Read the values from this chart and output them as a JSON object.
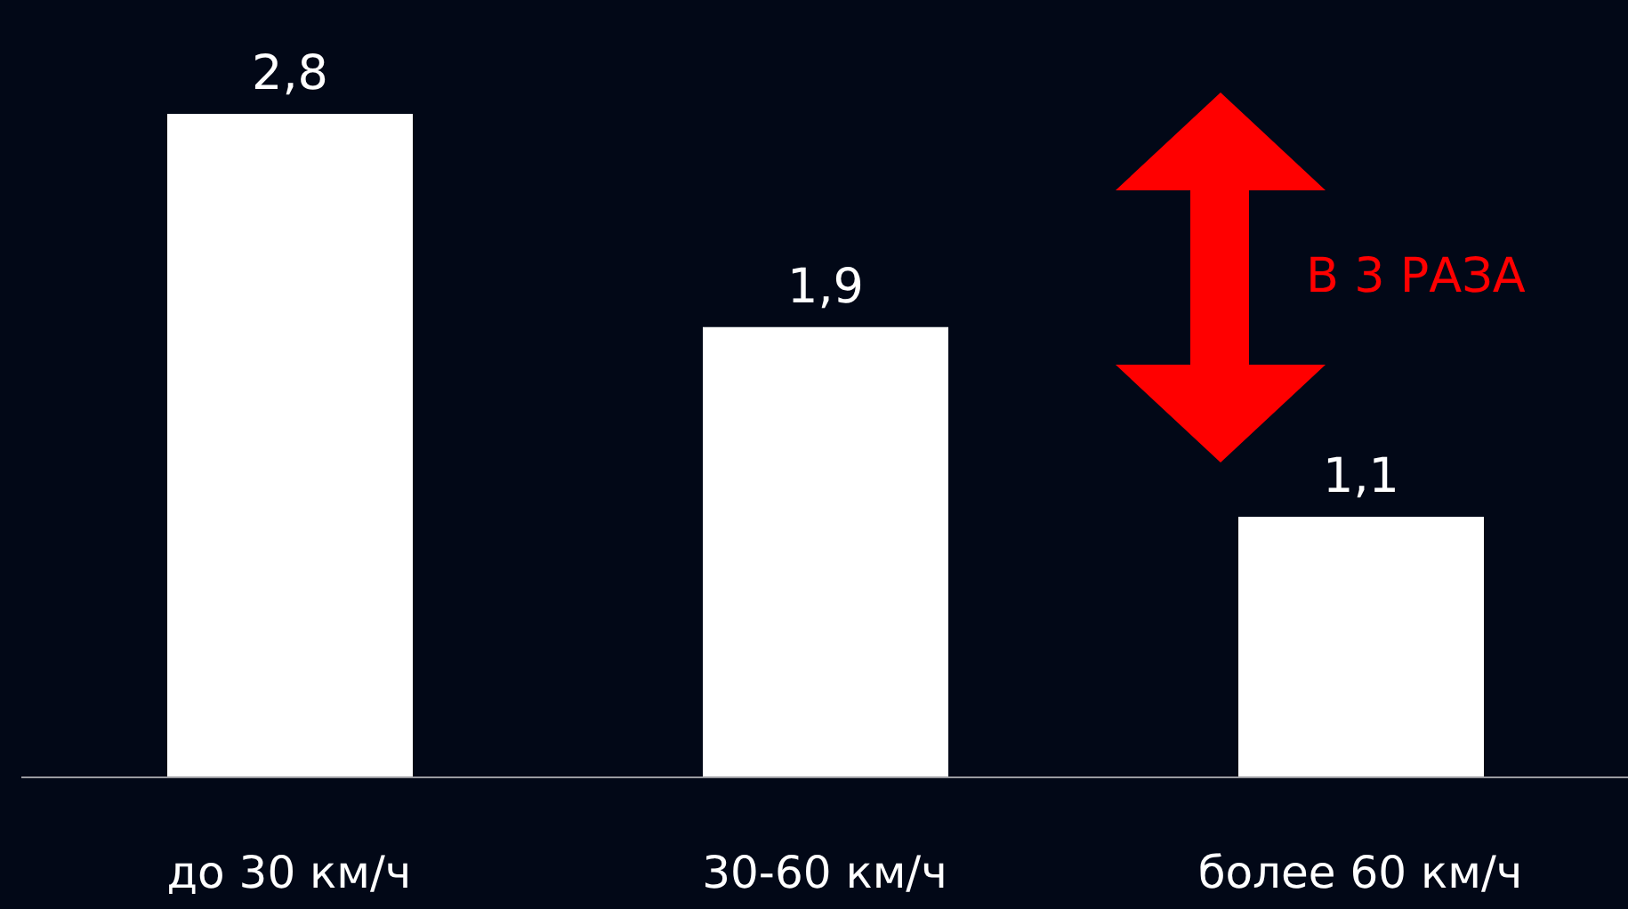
{
  "chart_data": {
    "type": "bar",
    "categories": [
      "до 30 км/ч",
      "30-60 км/ч",
      "более 60 км/ч"
    ],
    "values": [
      2.8,
      1.9,
      1.1
    ],
    "value_labels": [
      "2,8",
      "1,9",
      "1,1"
    ],
    "color": "#ffffff",
    "annotations": [
      "В 3 РАЗА"
    ],
    "grid": false,
    "legend": false
  }
}
